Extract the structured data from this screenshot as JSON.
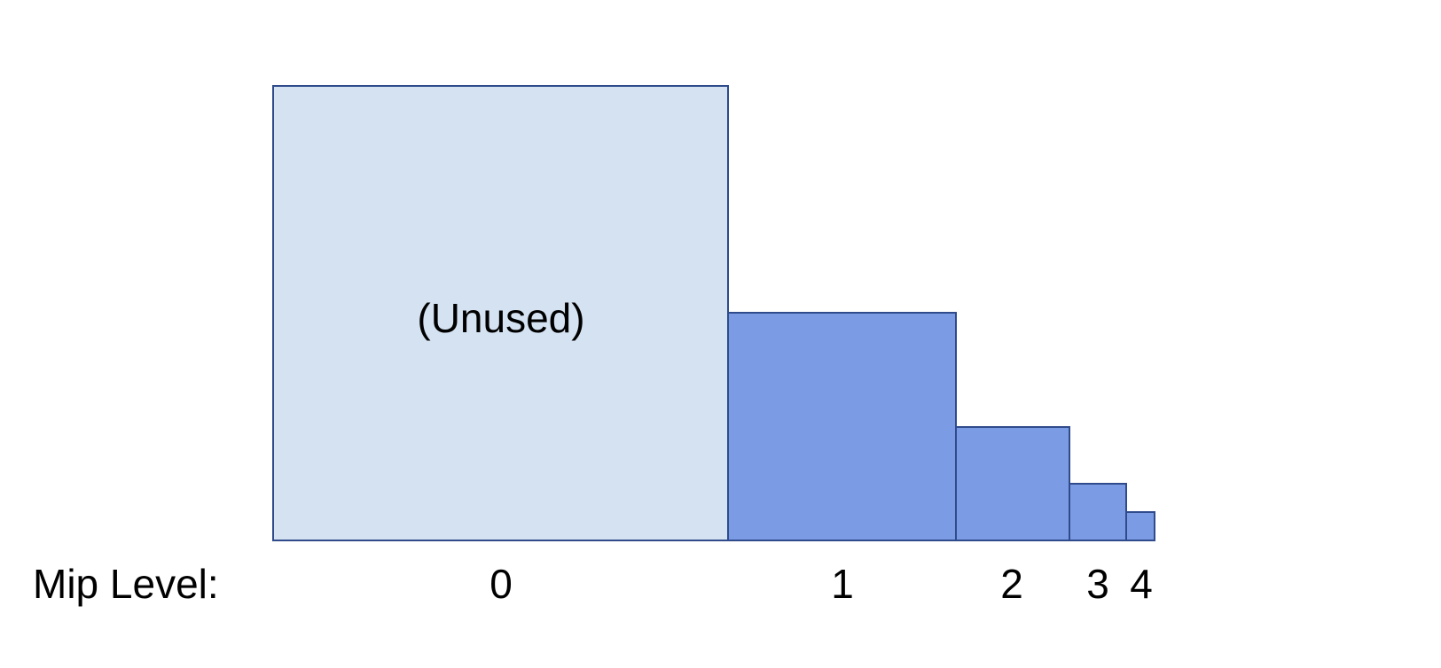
{
  "diagram": {
    "row_label": "Mip Level:",
    "unused_label": "(Unused)",
    "colors": {
      "unused_fill": "#d4e2f2",
      "used_fill": "#7b9ce4",
      "stroke": "#2f4b8c"
    },
    "levels": [
      {
        "label": "0",
        "unused": true
      },
      {
        "label": "1",
        "unused": false
      },
      {
        "label": "2",
        "unused": false
      },
      {
        "label": "3",
        "unused": false
      },
      {
        "label": "4",
        "unused": false
      }
    ]
  }
}
